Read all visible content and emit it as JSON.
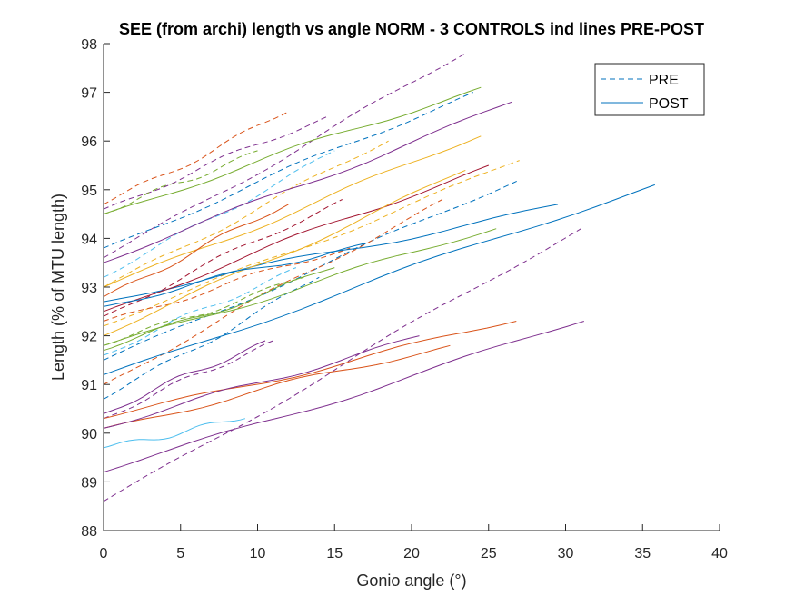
{
  "chart_data": {
    "type": "line",
    "title": "SEE (from archi) length vs angle NORM - 3 CONTROLS ind lines PRE-POST",
    "xlabel": "Gonio angle (°)",
    "ylabel": "Length (% of MTU length)",
    "xlim": [
      0,
      40
    ],
    "ylim": [
      88,
      98
    ],
    "xticks": [
      "0",
      "5",
      "10",
      "15",
      "20",
      "25",
      "30",
      "35",
      "40"
    ],
    "yticks": [
      "88",
      "89",
      "90",
      "91",
      "92",
      "93",
      "94",
      "95",
      "96",
      "97",
      "98"
    ],
    "grid": false,
    "legend": {
      "position": "top-right",
      "entries": [
        {
          "label": "PRE",
          "style": "dashed",
          "color": "#0072BD"
        },
        {
          "label": "POST",
          "style": "solid",
          "color": "#0072BD"
        }
      ]
    },
    "series": [
      {
        "style": "dashed",
        "color": "#D95319",
        "x": [
          0,
          12
        ],
        "y": [
          94.7,
          96.6
        ]
      },
      {
        "style": "dashed",
        "color": "#7E2F8E",
        "x": [
          0,
          14.5
        ],
        "y": [
          94.6,
          96.5
        ]
      },
      {
        "style": "dashed",
        "color": "#77AC30",
        "x": [
          0,
          10
        ],
        "y": [
          94.5,
          95.8
        ]
      },
      {
        "style": "dashed",
        "color": "#7E2F8E",
        "x": [
          0,
          23.5
        ],
        "y": [
          93.6,
          97.8
        ]
      },
      {
        "style": "dashed",
        "color": "#0072BD",
        "x": [
          0,
          24
        ],
        "y": [
          93.8,
          97.0
        ]
      },
      {
        "style": "dashed",
        "color": "#4DBEEE",
        "x": [
          0,
          15
        ],
        "y": [
          93.2,
          95.8
        ]
      },
      {
        "style": "dashed",
        "color": "#EDB120",
        "x": [
          0,
          18.5
        ],
        "y": [
          93.0,
          96.0
        ]
      },
      {
        "style": "dashed",
        "color": "#A2142F",
        "x": [
          0,
          15.5
        ],
        "y": [
          92.4,
          94.8
        ]
      },
      {
        "style": "dashed",
        "color": "#EDB120",
        "x": [
          0,
          27
        ],
        "y": [
          92.2,
          95.6
        ]
      },
      {
        "style": "dashed",
        "color": "#0072BD",
        "x": [
          0,
          27
        ],
        "y": [
          91.5,
          95.2
        ]
      },
      {
        "style": "dashed",
        "color": "#D95319",
        "x": [
          0,
          22
        ],
        "y": [
          91.0,
          94.8
        ]
      },
      {
        "style": "dashed",
        "color": "#77AC30",
        "x": [
          0,
          13
        ],
        "y": [
          91.8,
          93.2
        ]
      },
      {
        "style": "dashed",
        "color": "#7E2F8E",
        "x": [
          0,
          31
        ],
        "y": [
          88.6,
          94.2
        ]
      },
      {
        "style": "dashed",
        "color": "#7E2F8E",
        "x": [
          0,
          11
        ],
        "y": [
          90.3,
          91.9
        ]
      },
      {
        "style": "dashed",
        "color": "#0072BD",
        "x": [
          0,
          14
        ],
        "y": [
          90.7,
          93.2
        ]
      },
      {
        "style": "dashed",
        "color": "#D95319",
        "x": [
          0,
          16
        ],
        "y": [
          92.3,
          93.8
        ]
      },
      {
        "style": "dashed",
        "color": "#4DBEEE",
        "x": [
          0,
          12.5
        ],
        "y": [
          91.6,
          93.4
        ]
      },
      {
        "style": "solid",
        "color": "#7E2F8E",
        "x": [
          0,
          31.2
        ],
        "y": [
          89.2,
          92.3
        ]
      },
      {
        "style": "solid",
        "color": "#0072BD",
        "x": [
          0,
          35.8
        ],
        "y": [
          91.2,
          95.1
        ]
      },
      {
        "style": "solid",
        "color": "#0072BD",
        "x": [
          0,
          29.5
        ],
        "y": [
          92.7,
          94.7
        ]
      },
      {
        "style": "solid",
        "color": "#D95319",
        "x": [
          0,
          26.8
        ],
        "y": [
          90.3,
          92.3
        ]
      },
      {
        "style": "solid",
        "color": "#D95319",
        "x": [
          0,
          22.5
        ],
        "y": [
          90.1,
          91.8
        ]
      },
      {
        "style": "solid",
        "color": "#7E2F8E",
        "x": [
          0,
          20.5
        ],
        "y": [
          90.1,
          92.0
        ]
      },
      {
        "style": "solid",
        "color": "#4DBEEE",
        "x": [
          0,
          9.2
        ],
        "y": [
          89.7,
          90.3
        ]
      },
      {
        "style": "solid",
        "color": "#77AC30",
        "x": [
          0,
          24.5
        ],
        "y": [
          94.5,
          97.1
        ]
      },
      {
        "style": "solid",
        "color": "#7E2F8E",
        "x": [
          0,
          26.5
        ],
        "y": [
          93.5,
          96.8
        ]
      },
      {
        "style": "solid",
        "color": "#EDB120",
        "x": [
          0,
          24.5
        ],
        "y": [
          93.0,
          96.1
        ]
      },
      {
        "style": "solid",
        "color": "#A2142F",
        "x": [
          0,
          25
        ],
        "y": [
          92.5,
          95.5
        ]
      },
      {
        "style": "solid",
        "color": "#EDB120",
        "x": [
          0,
          23.5
        ],
        "y": [
          92.0,
          95.4
        ]
      },
      {
        "style": "solid",
        "color": "#77AC30",
        "x": [
          0,
          25.5
        ],
        "y": [
          91.8,
          94.2
        ]
      },
      {
        "style": "solid",
        "color": "#0072BD",
        "x": [
          0,
          17
        ],
        "y": [
          92.6,
          93.9
        ]
      },
      {
        "style": "solid",
        "color": "#77AC30",
        "x": [
          0,
          15
        ],
        "y": [
          91.7,
          93.4
        ]
      },
      {
        "style": "solid",
        "color": "#D95319",
        "x": [
          0,
          12
        ],
        "y": [
          92.8,
          94.7
        ]
      },
      {
        "style": "solid",
        "color": "#7E2F8E",
        "x": [
          0,
          10.5
        ],
        "y": [
          90.4,
          91.9
        ]
      }
    ]
  }
}
